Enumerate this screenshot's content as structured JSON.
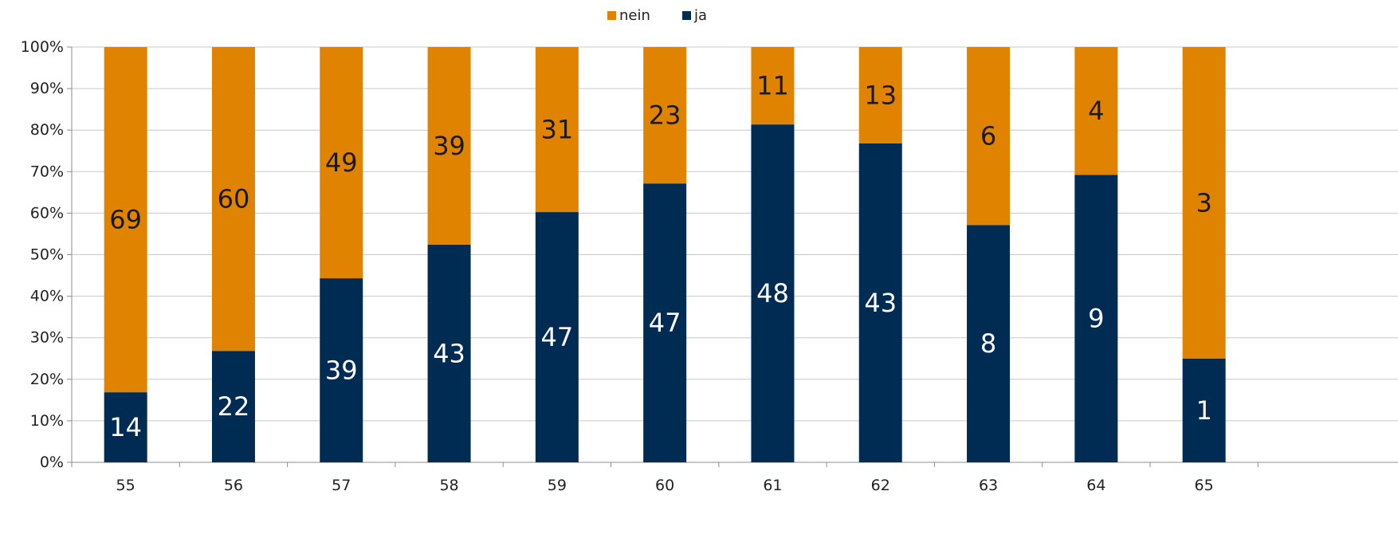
{
  "chart_data": {
    "type": "bar",
    "stacked": true,
    "normalized_percent": true,
    "title": "",
    "xlabel": "",
    "ylabel": "",
    "ylim": [
      0,
      100
    ],
    "y_ticks": [
      "0%",
      "10%",
      "20%",
      "30%",
      "40%",
      "50%",
      "60%",
      "70%",
      "80%",
      "90%",
      "100%"
    ],
    "grid": "horizontal",
    "legend_position": "top-center",
    "categories": [
      "55",
      "56",
      "57",
      "58",
      "59",
      "60",
      "61",
      "62",
      "63",
      "64",
      "65"
    ],
    "series": [
      {
        "name": "ja",
        "color": "#002b52",
        "label_color": "#ffffff",
        "values": [
          14,
          22,
          39,
          43,
          47,
          47,
          48,
          43,
          8,
          9,
          1
        ]
      },
      {
        "name": "nein",
        "color": "#e08300",
        "label_color": "#1a1a1a",
        "values": [
          69,
          60,
          49,
          39,
          31,
          23,
          11,
          13,
          6,
          4,
          3
        ]
      }
    ],
    "legend": [
      {
        "name": "nein",
        "color": "#e08300"
      },
      {
        "name": "ja",
        "color": "#002b52"
      }
    ]
  }
}
